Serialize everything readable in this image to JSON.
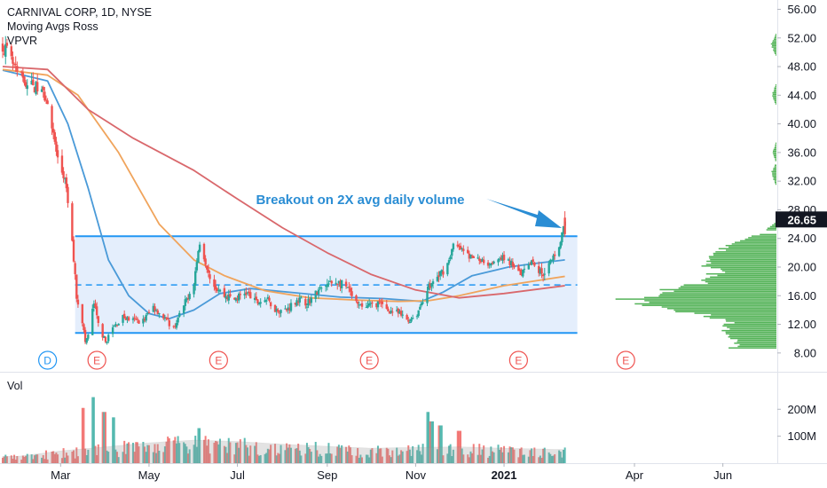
{
  "header": {
    "title": "CARNIVAL CORP, 1D, NYSE",
    "indicator_1": "Moving Avgs Ross",
    "indicator_2": "VPVR"
  },
  "volume_pane": {
    "label": "Vol"
  },
  "colors": {
    "up": "#26a69a",
    "down": "#ef5350",
    "box_line": "#2196f3",
    "box_fill": "#dbe8fb",
    "ma_fast": "#4a9ad8",
    "ma_mid": "#f0a45c",
    "ma_slow": "#d9686c",
    "vpvr": "#4caf50",
    "annotation": "#2a8dd4",
    "last_price_bg": "#131722"
  },
  "chart_data": {
    "type": "candlestick",
    "title": "CARNIVAL CORP, 1D, NYSE",
    "price_axis": {
      "ticks": [
        "56.00",
        "52.00",
        "48.00",
        "44.00",
        "40.00",
        "36.00",
        "32.00",
        "28.00",
        "24.00",
        "20.00",
        "16.00",
        "12.00",
        "8.00"
      ],
      "ylim": [
        5.5,
        57.3
      ]
    },
    "volume_axis": {
      "ticks": [
        "200M",
        "100M"
      ]
    },
    "time_axis": {
      "labels": [
        "Mar",
        "May",
        "Jul",
        "Sep",
        "Nov",
        "2021",
        "Apr",
        "Jun"
      ],
      "start": "2020-01-21",
      "end": "2021-06-30"
    },
    "last_price": "26.65",
    "annotation": {
      "text": "Breakout on 2X avg daily volume"
    },
    "range_box": {
      "top": 24.3,
      "bottom": 10.8,
      "mid": 17.5,
      "start": "2020-03-11",
      "end": "2021-02-12"
    },
    "events": [
      {
        "label": "D",
        "date": "2020-02-21",
        "kind": "dividend"
      },
      {
        "label": "E",
        "date": "2020-03-26",
        "kind": "earnings"
      },
      {
        "label": "E",
        "date": "2020-06-18",
        "kind": "earnings"
      },
      {
        "label": "E",
        "date": "2020-09-30",
        "kind": "earnings"
      },
      {
        "label": "E",
        "date": "2021-01-11",
        "kind": "earnings"
      },
      {
        "label": "E",
        "date": "2021-03-26",
        "kind": "earnings"
      }
    ],
    "price_path": [
      [
        "2020-01-21",
        51.0
      ],
      [
        "2020-01-24",
        50.0
      ],
      [
        "2020-01-31",
        47.0
      ],
      [
        "2020-02-07",
        45.5
      ],
      [
        "2020-02-14",
        45.0
      ],
      [
        "2020-02-21",
        43.5
      ],
      [
        "2020-02-24",
        39.5
      ],
      [
        "2020-02-28",
        35.0
      ],
      [
        "2020-03-04",
        32.0
      ],
      [
        "2020-03-06",
        29.0
      ],
      [
        "2020-03-09",
        23.5
      ],
      [
        "2020-03-12",
        16.0
      ],
      [
        "2020-03-16",
        12.5
      ],
      [
        "2020-03-18",
        9.5
      ],
      [
        "2020-03-20",
        10.5
      ],
      [
        "2020-03-24",
        15.0
      ],
      [
        "2020-03-27",
        12.0
      ],
      [
        "2020-04-01",
        9.5
      ],
      [
        "2020-04-06",
        11.5
      ],
      [
        "2020-04-13",
        13.0
      ],
      [
        "2020-04-20",
        12.5
      ],
      [
        "2020-04-27",
        12.5
      ],
      [
        "2020-05-04",
        14.5
      ],
      [
        "2020-05-11",
        13.0
      ],
      [
        "2020-05-18",
        11.5
      ],
      [
        "2020-05-26",
        15.0
      ],
      [
        "2020-06-01",
        18.0
      ],
      [
        "2020-06-05",
        23.5
      ],
      [
        "2020-06-10",
        20.0
      ],
      [
        "2020-06-15",
        17.5
      ],
      [
        "2020-06-22",
        16.0
      ],
      [
        "2020-06-29",
        15.5
      ],
      [
        "2020-07-07",
        16.5
      ],
      [
        "2020-07-14",
        15.0
      ],
      [
        "2020-07-21",
        15.5
      ],
      [
        "2020-07-28",
        14.0
      ],
      [
        "2020-08-04",
        14.0
      ],
      [
        "2020-08-11",
        15.5
      ],
      [
        "2020-08-18",
        15.0
      ],
      [
        "2020-08-25",
        16.5
      ],
      [
        "2020-09-01",
        17.5
      ],
      [
        "2020-09-08",
        18.0
      ],
      [
        "2020-09-15",
        17.0
      ],
      [
        "2020-09-22",
        14.5
      ],
      [
        "2020-09-29",
        14.5
      ],
      [
        "2020-10-06",
        15.0
      ],
      [
        "2020-10-13",
        14.0
      ],
      [
        "2020-10-20",
        13.5
      ],
      [
        "2020-10-27",
        12.5
      ],
      [
        "2020-11-02",
        13.5
      ],
      [
        "2020-11-09",
        17.0
      ],
      [
        "2020-11-16",
        18.5
      ],
      [
        "2020-11-23",
        20.5
      ],
      [
        "2020-11-27",
        23.0
      ],
      [
        "2020-12-02",
        22.5
      ],
      [
        "2020-12-08",
        21.5
      ],
      [
        "2020-12-15",
        21.0
      ],
      [
        "2020-12-22",
        20.5
      ],
      [
        "2020-12-29",
        21.5
      ],
      [
        "2021-01-06",
        20.5
      ],
      [
        "2021-01-13",
        19.5
      ],
      [
        "2021-01-20",
        21.0
      ],
      [
        "2021-01-27",
        19.0
      ],
      [
        "2021-02-03",
        21.0
      ],
      [
        "2021-02-09",
        23.5
      ],
      [
        "2021-02-12",
        26.65
      ]
    ],
    "moving_averages": [
      {
        "name": "fast",
        "points": [
          [
            "2020-01-21",
            47.5
          ],
          [
            "2020-02-21",
            46.0
          ],
          [
            "2020-03-06",
            40.0
          ],
          [
            "2020-03-20",
            31.0
          ],
          [
            "2020-04-03",
            21.0
          ],
          [
            "2020-04-17",
            16.0
          ],
          [
            "2020-05-01",
            13.5
          ],
          [
            "2020-05-15",
            12.8
          ],
          [
            "2020-06-01",
            14.0
          ],
          [
            "2020-06-19",
            16.3
          ],
          [
            "2020-07-10",
            17.0
          ],
          [
            "2020-08-10",
            16.4
          ],
          [
            "2020-09-10",
            15.8
          ],
          [
            "2020-10-10",
            15.6
          ],
          [
            "2020-11-05",
            15.2
          ],
          [
            "2020-11-20",
            16.5
          ],
          [
            "2020-12-10",
            18.8
          ],
          [
            "2021-01-04",
            20.0
          ],
          [
            "2021-01-22",
            20.5
          ],
          [
            "2021-02-12",
            21.0
          ]
        ]
      },
      {
        "name": "mid",
        "points": [
          [
            "2020-01-21",
            47.6
          ],
          [
            "2020-02-21",
            46.8
          ],
          [
            "2020-03-13",
            44.0
          ],
          [
            "2020-04-10",
            36.0
          ],
          [
            "2020-05-08",
            26.0
          ],
          [
            "2020-06-01",
            21.0
          ],
          [
            "2020-06-22",
            18.8
          ],
          [
            "2020-07-20",
            16.7
          ],
          [
            "2020-08-20",
            15.7
          ],
          [
            "2020-09-20",
            15.4
          ],
          [
            "2020-10-20",
            15.2
          ],
          [
            "2020-11-10",
            15.3
          ],
          [
            "2020-12-01",
            16.0
          ],
          [
            "2021-01-01",
            17.4
          ],
          [
            "2021-02-12",
            18.7
          ]
        ]
      },
      {
        "name": "slow",
        "points": [
          [
            "2020-01-21",
            48.0
          ],
          [
            "2020-02-21",
            47.6
          ],
          [
            "2020-03-20",
            42.0
          ],
          [
            "2020-04-20",
            38.0
          ],
          [
            "2020-06-01",
            33.5
          ],
          [
            "2020-07-01",
            29.5
          ],
          [
            "2020-08-01",
            25.5
          ],
          [
            "2020-09-01",
            22.0
          ],
          [
            "2020-10-01",
            19.0
          ],
          [
            "2020-11-01",
            16.8
          ],
          [
            "2020-12-01",
            15.7
          ],
          [
            "2021-01-01",
            16.3
          ],
          [
            "2021-02-12",
            17.4
          ]
        ]
      }
    ],
    "volume_avg": [
      [
        "2020-02-01",
        25
      ],
      [
        "2020-03-01",
        45
      ],
      [
        "2020-04-01",
        60
      ],
      [
        "2020-05-01",
        75
      ],
      [
        "2020-06-01",
        85
      ],
      [
        "2020-07-01",
        80
      ],
      [
        "2020-08-01",
        70
      ],
      [
        "2020-09-01",
        62
      ],
      [
        "2020-10-01",
        55
      ],
      [
        "2020-11-01",
        58
      ],
      [
        "2020-12-01",
        60
      ],
      [
        "2021-01-01",
        55
      ],
      [
        "2021-02-12",
        50
      ]
    ],
    "volume_spikes": [
      [
        "2020-03-23",
        245
      ],
      [
        "2020-03-16",
        205
      ],
      [
        "2020-03-31",
        190
      ],
      [
        "2020-04-06",
        170
      ],
      [
        "2020-06-05",
        130
      ],
      [
        "2020-11-09",
        190
      ],
      [
        "2020-11-12",
        155
      ],
      [
        "2020-11-18",
        140
      ],
      [
        "2020-12-01",
        120
      ]
    ],
    "vpvr_profile": [
      [
        8.5,
        50
      ],
      [
        9.5,
        45
      ],
      [
        10.5,
        55
      ],
      [
        11.5,
        60
      ],
      [
        12.5,
        55
      ],
      [
        13.5,
        95
      ],
      [
        14.5,
        135
      ],
      [
        15.5,
        170
      ],
      [
        16.5,
        130
      ],
      [
        17.5,
        95
      ],
      [
        18.5,
        80
      ],
      [
        19.5,
        65
      ],
      [
        20.5,
        85
      ],
      [
        21.5,
        80
      ],
      [
        22.5,
        60
      ],
      [
        23.5,
        45
      ],
      [
        24.5,
        20
      ],
      [
        33,
        6
      ],
      [
        36,
        4
      ],
      [
        44,
        5
      ],
      [
        51,
        6
      ]
    ]
  }
}
